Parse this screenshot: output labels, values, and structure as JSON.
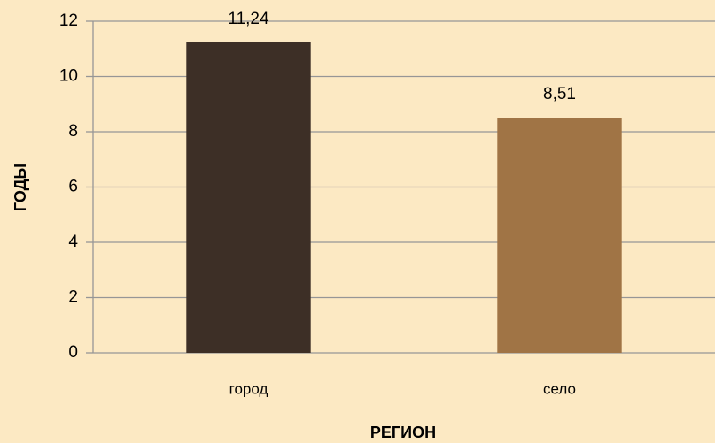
{
  "chart_data": {
    "type": "bar",
    "categories": [
      "город",
      "село"
    ],
    "values": [
      11.24,
      8.51
    ],
    "value_labels": [
      "11,24",
      "8,51"
    ],
    "colors": [
      "#3d2f26",
      "#a07445"
    ],
    "xlabel": "РЕГИОН",
    "ylabel": "ГОДЫ",
    "ylim": [
      0,
      12
    ],
    "yticks": [
      0,
      2,
      4,
      6,
      8,
      10,
      12
    ],
    "grid": true
  }
}
